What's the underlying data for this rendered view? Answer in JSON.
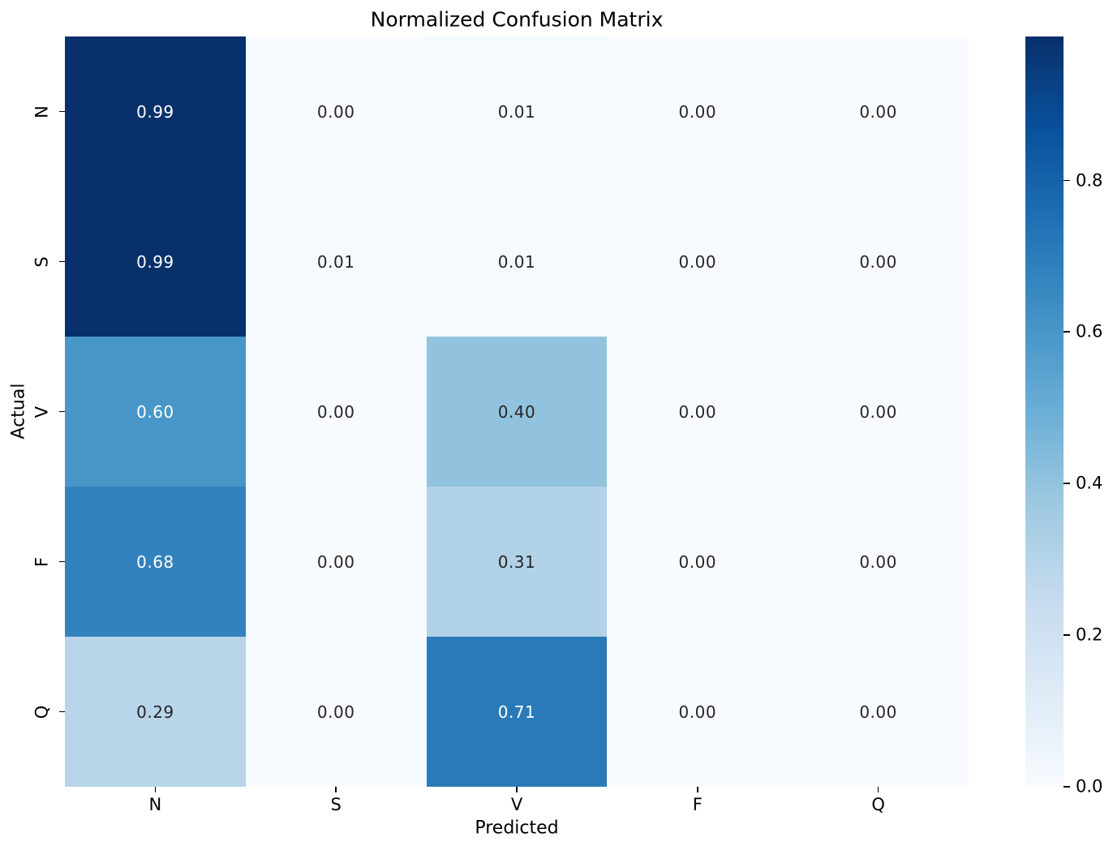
{
  "chart_data": {
    "type": "heatmap",
    "title": "Normalized Confusion Matrix",
    "xlabel": "Predicted",
    "ylabel": "Actual",
    "x_categories": [
      "N",
      "S",
      "V",
      "F",
      "Q"
    ],
    "y_categories": [
      "N",
      "S",
      "V",
      "F",
      "Q"
    ],
    "matrix": [
      [
        0.99,
        0.0,
        0.01,
        0.0,
        0.0
      ],
      [
        0.99,
        0.01,
        0.01,
        0.0,
        0.0
      ],
      [
        0.6,
        0.0,
        0.4,
        0.0,
        0.0
      ],
      [
        0.68,
        0.0,
        0.31,
        0.0,
        0.0
      ],
      [
        0.29,
        0.0,
        0.71,
        0.0,
        0.0
      ]
    ],
    "cell_labels": [
      [
        "0.99",
        "0.00",
        "0.01",
        "0.00",
        "0.00"
      ],
      [
        "0.99",
        "0.01",
        "0.01",
        "0.00",
        "0.00"
      ],
      [
        "0.60",
        "0.00",
        "0.40",
        "0.00",
        "0.00"
      ],
      [
        "0.68",
        "0.00",
        "0.31",
        "0.00",
        "0.00"
      ],
      [
        "0.29",
        "0.00",
        "0.71",
        "0.00",
        "0.00"
      ]
    ],
    "cell_colors": [
      [
        "#08306b",
        "#f7fbff",
        "#f5fafe",
        "#f7fbff",
        "#f7fbff"
      ],
      [
        "#08306b",
        "#f5fafe",
        "#f5fafe",
        "#f7fbff",
        "#f7fbff"
      ],
      [
        "#4896c8",
        "#f7fbff",
        "#92c3de",
        "#f7fbff",
        "#f7fbff"
      ],
      [
        "#3282be",
        "#f7fbff",
        "#b2d2e8",
        "#f7fbff",
        "#f7fbff"
      ],
      [
        "#b8d5ea",
        "#f7fbff",
        "#2a7ab9",
        "#f7fbff",
        "#f7fbff"
      ]
    ],
    "cell_text_colors": [
      [
        "w",
        "d",
        "d",
        "d",
        "d"
      ],
      [
        "w",
        "d",
        "d",
        "d",
        "d"
      ],
      [
        "w",
        "d",
        "d",
        "d",
        "d"
      ],
      [
        "w",
        "d",
        "d",
        "d",
        "d"
      ],
      [
        "d",
        "d",
        "w",
        "d",
        "d"
      ]
    ],
    "vmin": 0.0,
    "vmax": 0.99,
    "colormap": {
      "name": "Blues",
      "anchors": [
        "#f7fbff",
        "#deebf7",
        "#c6dbef",
        "#9ecae1",
        "#6baed6",
        "#4292c6",
        "#2171b5",
        "#08519c",
        "#08306b"
      ]
    },
    "colorbar_ticks": [
      {
        "label": "0.8",
        "value": 0.8
      },
      {
        "label": "0.6",
        "value": 0.6
      },
      {
        "label": "0.4",
        "value": 0.4
      },
      {
        "label": "0.2",
        "value": 0.2
      },
      {
        "label": "0.0",
        "value": 0.0
      }
    ],
    "grid": false,
    "legend_position": "colorbar-right"
  },
  "colors": {
    "background": "#ffffff",
    "text": "#000000",
    "annotation_dark": "#262626",
    "annotation_light": "#ffffff",
    "tick": "#000000"
  }
}
